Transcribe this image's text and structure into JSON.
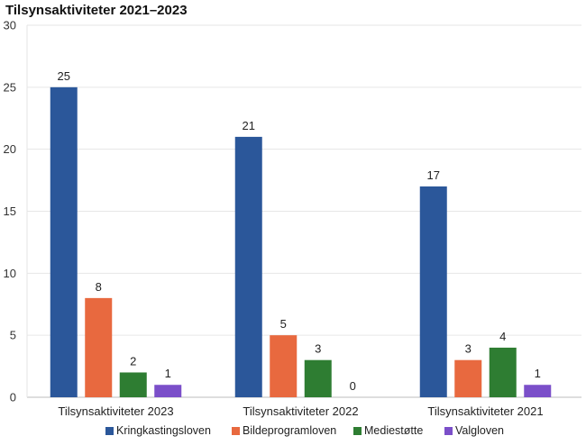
{
  "chart_data": {
    "type": "bar",
    "title": "Tilsynsaktiviteter 2021–2023",
    "xlabel": "",
    "ylabel": "",
    "ylim": [
      0,
      30
    ],
    "yticks": [
      0,
      5,
      10,
      15,
      20,
      25,
      30
    ],
    "grid": true,
    "legend_position": "bottom",
    "categories": [
      "Tilsynsaktiviteter 2023",
      "Tilsynsaktiviteter 2022",
      "Tilsynsaktiviteter 2021"
    ],
    "series": [
      {
        "name": "Kringkastingsloven",
        "color": "#2b579a",
        "values": [
          25,
          21,
          17
        ]
      },
      {
        "name": "Bildeprogramloven",
        "color": "#e8693f",
        "values": [
          8,
          5,
          3
        ]
      },
      {
        "name": "Mediestøtte",
        "color": "#2e7d32",
        "values": [
          2,
          3,
          4
        ]
      },
      {
        "name": "Valgloven",
        "color": "#7b4fc9",
        "values": [
          1,
          0,
          1
        ]
      }
    ]
  }
}
